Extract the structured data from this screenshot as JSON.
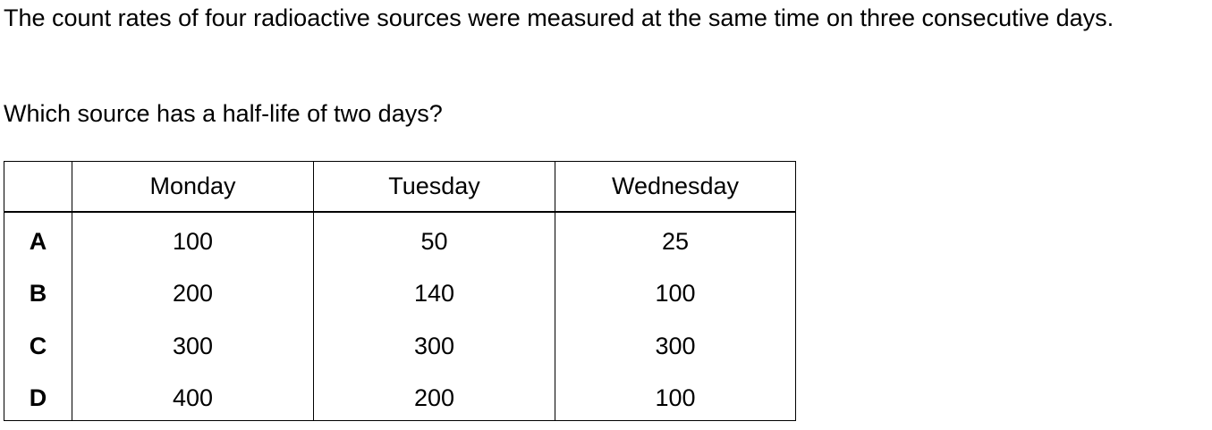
{
  "question": {
    "intro": "The count rates of four radioactive sources were measured at the same time on three consecutive days.",
    "prompt": "Which source has a half-life of two days?"
  },
  "table": {
    "headers": [
      "",
      "Monday",
      "Tuesday",
      "Wednesday"
    ],
    "rows": [
      {
        "label": "A",
        "values": [
          "100",
          "50",
          "25"
        ]
      },
      {
        "label": "B",
        "values": [
          "200",
          "140",
          "100"
        ]
      },
      {
        "label": "C",
        "values": [
          "300",
          "300",
          "300"
        ]
      },
      {
        "label": "D",
        "values": [
          "400",
          "200",
          "100"
        ]
      }
    ]
  }
}
